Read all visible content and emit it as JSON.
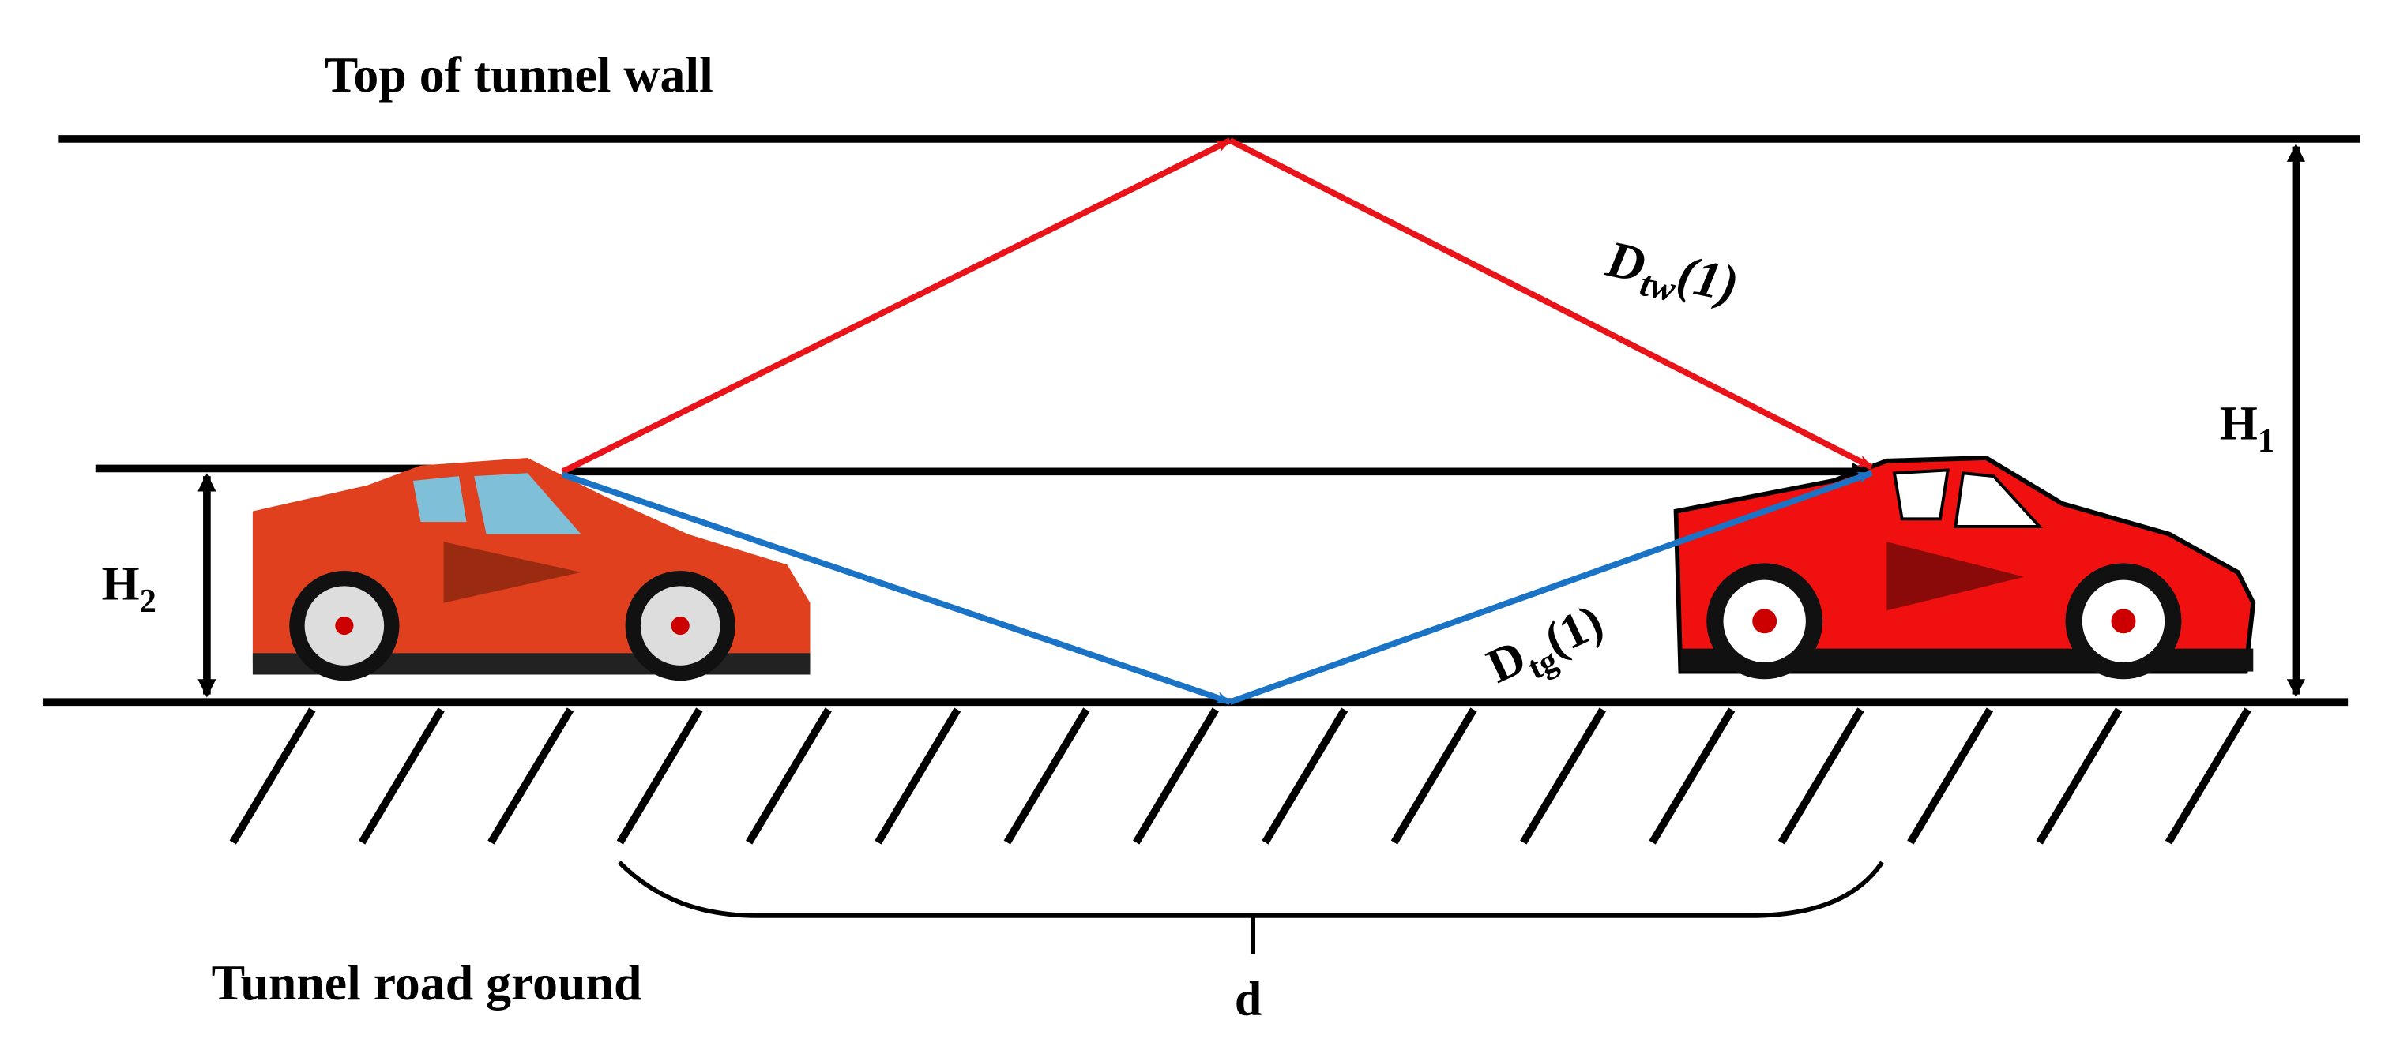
{
  "labels": {
    "top_wall": "Top of tunnel wall",
    "road_ground": "Tunnel road ground",
    "h1": {
      "main": "H",
      "sub": "1"
    },
    "h2": {
      "main": "H",
      "sub": "2"
    },
    "d_tw": {
      "main": "D",
      "sub": "tw",
      "suffix": "(1)"
    },
    "d_tg": {
      "main": "D",
      "sub": "tg",
      "suffix": "(1)"
    },
    "d": "d"
  }
}
